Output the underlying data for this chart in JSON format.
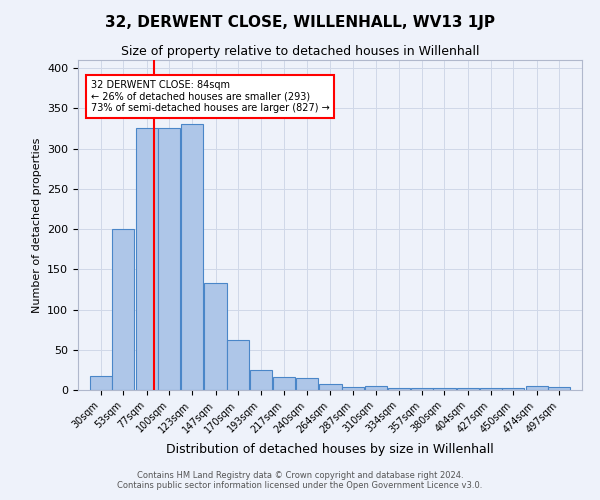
{
  "title": "32, DERWENT CLOSE, WILLENHALL, WV13 1JP",
  "subtitle": "Size of property relative to detached houses in Willenhall",
  "xlabel": "Distribution of detached houses by size in Willenhall",
  "ylabel": "Number of detached properties",
  "footnote1": "Contains HM Land Registry data © Crown copyright and database right 2024.",
  "footnote2": "Contains public sector information licensed under the Open Government Licence v3.0.",
  "bar_labels": [
    "30sqm",
    "53sqm",
    "77sqm",
    "100sqm",
    "123sqm",
    "147sqm",
    "170sqm",
    "193sqm",
    "217sqm",
    "240sqm",
    "264sqm",
    "287sqm",
    "310sqm",
    "334sqm",
    "357sqm",
    "380sqm",
    "404sqm",
    "427sqm",
    "450sqm",
    "474sqm",
    "497sqm"
  ],
  "bar_values": [
    18,
    200,
    325,
    325,
    330,
    133,
    62,
    25,
    16,
    15,
    7,
    4,
    5,
    3,
    3,
    3,
    2,
    3,
    3,
    5,
    4
  ],
  "bar_color": "#aec6e8",
  "bar_edge_color": "#4a86c8",
  "grid_color": "#d0d8e8",
  "background_color": "#eef2fa",
  "bin_width": 23,
  "red_line_value": 84,
  "annotation_text": "32 DERWENT CLOSE: 84sqm\n← 26% of detached houses are smaller (293)\n73% of semi-detached houses are larger (827) →",
  "annotation_box_color": "white",
  "annotation_box_edge_color": "red",
  "ylim": [
    0,
    410
  ],
  "yticks": [
    0,
    50,
    100,
    150,
    200,
    250,
    300,
    350,
    400
  ],
  "title_fontsize": 11,
  "subtitle_fontsize": 9,
  "ylabel_fontsize": 8,
  "xlabel_fontsize": 9,
  "tick_fontsize": 7,
  "footnote_fontsize": 6
}
